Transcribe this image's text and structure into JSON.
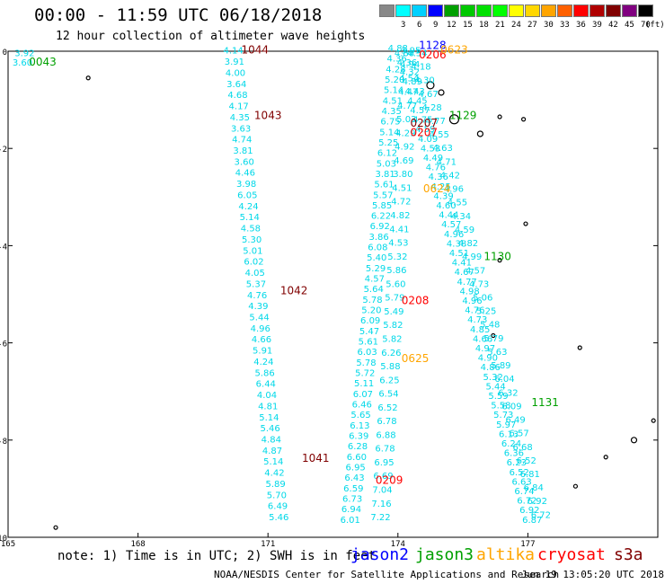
{
  "header": {
    "title": "00:00 - 11:59 UTC 06/18/2018",
    "subtitle": "12 hour collection of altimeter wave heights"
  },
  "legend": {
    "unit": "(ft)",
    "items": [
      {
        "label": "",
        "color": "#888888"
      },
      {
        "label": "3",
        "color": "#00ffff"
      },
      {
        "label": "6",
        "color": "#00d0ff"
      },
      {
        "label": "9",
        "color": "#0000ff"
      },
      {
        "label": "12",
        "color": "#00a000"
      },
      {
        "label": "15",
        "color": "#00c800"
      },
      {
        "label": "18",
        "color": "#00e000"
      },
      {
        "label": "21",
        "color": "#00ff00"
      },
      {
        "label": "24",
        "color": "#ffff00"
      },
      {
        "label": "27",
        "color": "#ffd700"
      },
      {
        "label": "30",
        "color": "#ffa500"
      },
      {
        "label": "33",
        "color": "#ff6000"
      },
      {
        "label": "36",
        "color": "#ff0000"
      },
      {
        "label": "39",
        "color": "#b00000"
      },
      {
        "label": "42",
        "color": "#800000"
      },
      {
        "label": "45",
        "color": "#800080"
      },
      {
        "label": "70",
        "color": "#000000"
      }
    ]
  },
  "axes": {
    "lat_labels": [
      "0",
      "-2",
      "-4",
      "-6",
      "-8",
      "-10"
    ],
    "lon_labels": [
      "165",
      "168",
      "171",
      "174",
      "177"
    ]
  },
  "time_labels": [
    {
      "text": "0043",
      "color": "#00a000",
      "lon": 165.8,
      "lat": -0.3
    },
    {
      "text": "1044",
      "color": "#800000",
      "lon": 170.7,
      "lat": -0.05
    },
    {
      "text": "1043",
      "color": "#800000",
      "lon": 171.0,
      "lat": -1.4
    },
    {
      "text": "1042",
      "color": "#800000",
      "lon": 171.6,
      "lat": -5.0
    },
    {
      "text": "1041",
      "color": "#800000",
      "lon": 172.1,
      "lat": -8.45
    },
    {
      "text": "1128",
      "color": "#0000ff",
      "lon": 174.8,
      "lat": 0.05
    },
    {
      "text": "0206",
      "color": "#ff0000",
      "lon": 174.8,
      "lat": -0.15
    },
    {
      "text": "0623",
      "color": "#ffa500",
      "lon": 175.3,
      "lat": -0.05
    },
    {
      "text": "1129",
      "color": "#00a000",
      "lon": 175.5,
      "lat": -1.4
    },
    {
      "text": "0207",
      "color": "#800000",
      "lon": 174.6,
      "lat": -1.55
    },
    {
      "text": "0207",
      "color": "#ff0000",
      "lon": 174.6,
      "lat": -1.75
    },
    {
      "text": "0624",
      "color": "#ffa500",
      "lon": 174.9,
      "lat": -2.9
    },
    {
      "text": "1130",
      "color": "#00a000",
      "lon": 176.3,
      "lat": -4.3
    },
    {
      "text": "0208",
      "color": "#ff0000",
      "lon": 174.4,
      "lat": -5.2
    },
    {
      "text": "0625",
      "color": "#ffa500",
      "lon": 174.4,
      "lat": -6.4
    },
    {
      "text": "1131",
      "color": "#00a000",
      "lon": 177.4,
      "lat": -7.3
    },
    {
      "text": "0209",
      "color": "#ff0000",
      "lon": 173.8,
      "lat": -8.9
    }
  ],
  "corner_values": [
    {
      "text": "3.92",
      "lon": 165.15,
      "lat": -0.1
    },
    {
      "text": "3.60",
      "lon": 165.1,
      "lat": -0.3
    }
  ],
  "tracks": [
    {
      "name": "track-1041-1044",
      "color": "#00d8e8",
      "start": {
        "lon": 170.2,
        "lat": -0.05
      },
      "end": {
        "lon": 171.25,
        "lat": -9.65
      },
      "values": [
        "4.14",
        "3.91",
        "4.00",
        "3.64",
        "4.68",
        "4.17",
        "4.35",
        "3.63",
        "4.74",
        "3.81",
        "3.60",
        "4.46",
        "3.98",
        "6.05",
        "4.24",
        "5.14",
        "4.58",
        "5.30",
        "5.01",
        "6.02",
        "4.05",
        "5.37",
        "4.76",
        "4.39",
        "5.44",
        "4.96",
        "4.66",
        "5.91",
        "4.24",
        "5.86",
        "6.44",
        "4.04",
        "4.81",
        "5.14",
        "5.46",
        "4.84",
        "4.87",
        "5.14",
        "4.42",
        "5.89",
        "5.70",
        "6.49",
        "5.46"
      ]
    },
    {
      "name": "track-0206-0209-lower",
      "color": "#00d8e8",
      "start": {
        "lon": 174.0,
        "lat": 0.0
      },
      "end": {
        "lon": 172.9,
        "lat": -9.7
      },
      "values": [
        "4.88",
        "4.36",
        "4.28",
        "5.20",
        "5.14",
        "4.51",
        "4.35",
        "6.75",
        "5.14",
        "5.25",
        "6.12",
        "5.03",
        "3.81",
        "5.61",
        "5.57",
        "5.85",
        "6.22",
        "6.92",
        "3.86",
        "6.08",
        "5.40",
        "5.29",
        "4.57",
        "5.64",
        "5.78",
        "5.20",
        "6.09",
        "5.47",
        "5.61",
        "6.03",
        "5.78",
        "5.72",
        "5.11",
        "6.07",
        "6.46",
        "5.65",
        "6.13",
        "6.39",
        "6.28",
        "6.60",
        "6.95",
        "6.43",
        "6.59",
        "6.73",
        "6.94",
        "6.01"
      ]
    },
    {
      "name": "track-0206-0209-upper",
      "color": "#00d8e8",
      "start": {
        "lon": 174.3,
        "lat": -0.05
      },
      "end": {
        "lon": 173.6,
        "lat": -9.65
      },
      "values": [
        "3.95",
        "4.94",
        "4.54",
        "4.47",
        "4.77",
        "5.03",
        "4.29",
        "4.92",
        "4.69",
        "3.80",
        "4.51",
        "4.72",
        "4.82",
        "4.41",
        "4.53",
        "5.32",
        "5.86",
        "5.60",
        "5.79",
        "5.49",
        "5.82",
        "5.82",
        "6.26",
        "5.88",
        "6.25",
        "6.54",
        "6.52",
        "6.78",
        "6.88",
        "6.78",
        "6.95",
        "6.69",
        "7.04",
        "7.16",
        "7.22"
      ]
    },
    {
      "name": "track-1128-1131",
      "color": "#00d8e8",
      "start": {
        "lon": 174.15,
        "lat": -0.1
      },
      "end": {
        "lon": 177.1,
        "lat": -9.7
      },
      "values": [
        "4.88",
        "4.36",
        "4.32",
        "4.89",
        "4.43",
        "4.45",
        "4.57",
        "4.75",
        "4.59",
        "4.09",
        "4.53",
        "4.49",
        "4.76",
        "4.36",
        "4.25",
        "4.39",
        "4.60",
        "4.44",
        "4.57",
        "4.96",
        "4.38",
        "4.51",
        "4.41",
        "4.67",
        "4.77",
        "4.98",
        "4.96",
        "4.76",
        "4.73",
        "4.85",
        "4.66",
        "4.97",
        "4.90",
        "4.86",
        "5.32",
        "5.44",
        "5.59",
        "5.58",
        "5.73",
        "5.97",
        "6.13",
        "6.24",
        "6.36",
        "6.23",
        "6.52",
        "6.63",
        "6.74",
        "6.72",
        "6.92",
        "6.87"
      ]
    },
    {
      "name": "track-1128-1131-b",
      "color": "#00d8e8",
      "start": {
        "lon": 174.45,
        "lat": -0.1
      },
      "end": {
        "lon": 177.3,
        "lat": -9.6
      },
      "values": [
        "4.54",
        "4.18",
        "4.30",
        "4.67",
        "4.28",
        "4.77",
        "4.55",
        "4.63",
        "4.71",
        "4.42",
        "4.96",
        "4.55",
        "4.34",
        "4.59",
        "4.82",
        "4.99",
        "4.57",
        "4.73",
        "5.06",
        "5.25",
        "5.48",
        "5.79",
        "5.63",
        "5.89",
        "6.04",
        "6.32",
        "6.09",
        "6.49",
        "6.57",
        "6.68",
        "6.52",
        "6.81",
        "6.84",
        "6.92",
        "6.72"
      ]
    }
  ],
  "islands": [
    {
      "name": "island",
      "lon": 174.75,
      "lat": -0.7,
      "r": 4
    },
    {
      "name": "island",
      "lon": 175.0,
      "lat": -0.85,
      "r": 3
    },
    {
      "name": "island",
      "lon": 175.3,
      "lat": -1.4,
      "r": 5
    },
    {
      "name": "island",
      "lon": 175.9,
      "lat": -1.7,
      "r": 3
    },
    {
      "name": "island",
      "lon": 176.35,
      "lat": -1.35,
      "r": 2
    },
    {
      "name": "island",
      "lon": 176.9,
      "lat": -1.4,
      "r": 2
    },
    {
      "name": "island",
      "lon": 166.85,
      "lat": -0.55,
      "r": 2
    },
    {
      "name": "island",
      "lon": 176.35,
      "lat": -4.3,
      "r": 2
    },
    {
      "name": "island",
      "lon": 176.95,
      "lat": -3.55,
      "r": 2
    },
    {
      "name": "island",
      "lon": 176.2,
      "lat": -5.85,
      "r": 2
    },
    {
      "name": "island",
      "lon": 178.2,
      "lat": -6.1,
      "r": 2
    },
    {
      "name": "island",
      "lon": 179.9,
      "lat": -7.6,
      "r": 2
    },
    {
      "name": "island",
      "lon": 179.45,
      "lat": -8.0,
      "r": 3
    },
    {
      "name": "island",
      "lon": 178.8,
      "lat": -8.35,
      "r": 2
    },
    {
      "name": "island",
      "lon": 178.1,
      "lat": -8.95,
      "r": 2
    },
    {
      "name": "island",
      "lon": 166.1,
      "lat": -9.8,
      "r": 2
    }
  ],
  "footer": {
    "note": "note: 1) Time is in UTC; 2) SWH is in feet",
    "satellites": [
      {
        "label": "jason2",
        "color": "#0000ff"
      },
      {
        "label": "jason3",
        "color": "#00a000"
      },
      {
        "label": "altika",
        "color": "#ffa500"
      },
      {
        "label": "cryosat",
        "color": "#ff0000"
      },
      {
        "label": "s3a",
        "color": "#800000"
      }
    ],
    "credit": "NOAA/NESDIS Center for Satellite Applications and Research",
    "timestamp": "Jun 19 13:05:20 UTC 2018"
  }
}
